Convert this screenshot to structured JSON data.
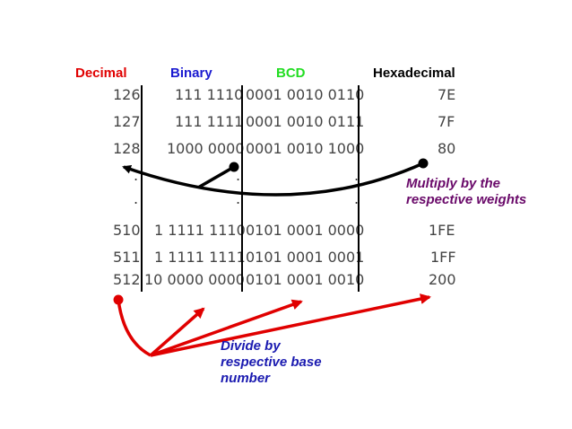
{
  "headers": {
    "decimal": "Decimal",
    "binary": "Binary",
    "bcd": "BCD",
    "hex": "Hexadecimal"
  },
  "colors": {
    "decimal": "#e00000",
    "binary": "#1a1ad0",
    "bcd": "#22dd22",
    "hex": "#000000",
    "multiply_note": "#6a0a6a",
    "divide_note": "#1a1ab0",
    "red_arrow": "#e00000",
    "black_arrow": "#000000"
  },
  "rows": [
    {
      "decimal": "126",
      "binary": "111 1110",
      "bcd": "0001 0010 0110",
      "hex": "7E"
    },
    {
      "decimal": "127",
      "binary": "111 1111",
      "bcd": "0001 0010 0111",
      "hex": "7F"
    },
    {
      "decimal": "128",
      "binary": "1000 0000",
      "bcd": "0001 0010 1000",
      "hex": "80"
    },
    {
      "decimal": "510",
      "binary": "1 1111 1110",
      "bcd": "0101 0001 0000",
      "hex": "1FE"
    },
    {
      "decimal": "511",
      "binary": "1 1111 1111",
      "bcd": "0101 0001 0001",
      "hex": "1FF"
    },
    {
      "decimal": "512",
      "binary": "10 0000 0000",
      "bcd": "0101 0001 0010",
      "hex": "200"
    }
  ],
  "ellipsis": ".",
  "notes": {
    "multiply_line1": "Multiply by the",
    "multiply_line2": "respective weights",
    "divide_line1": "Divide by",
    "divide_line2": "respective base",
    "divide_line3": "number"
  }
}
